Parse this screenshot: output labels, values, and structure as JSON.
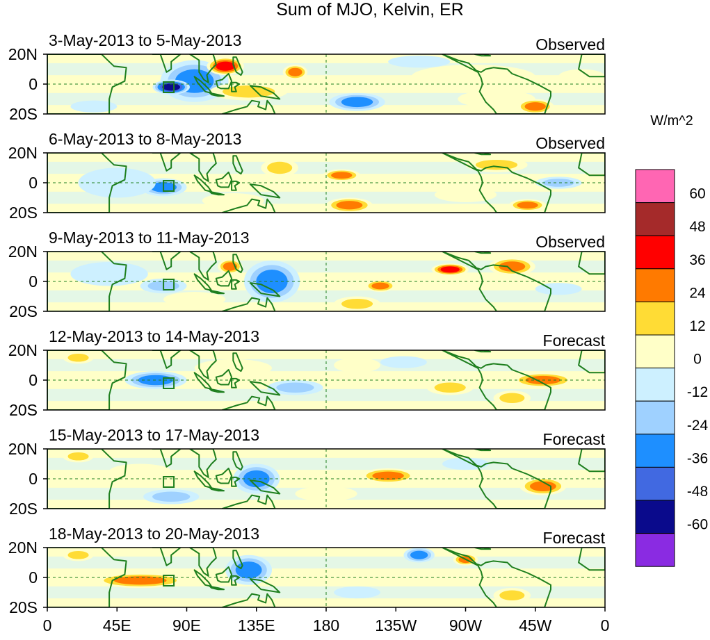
{
  "title": "Sum of MJO, Kelvin, ER",
  "colorbar": {
    "units": "W/m^2",
    "levels": [
      "60",
      "48",
      "36",
      "24",
      "12",
      "0",
      "-12",
      "-24",
      "-36",
      "-48",
      "-60"
    ],
    "colors": [
      "#ff66b3",
      "#a52a2a",
      "#ff0000",
      "#ff7a00",
      "#ffdc35",
      "#ffffc8",
      "#cdf0ff",
      "#9fd1ff",
      "#1e8fff",
      "#4169e1",
      "#0a0a8c",
      "#8a2be2"
    ]
  },
  "axes": {
    "x_ticks": [
      "0",
      "45E",
      "90E",
      "135E",
      "180",
      "135W",
      "90W",
      "45W",
      "0"
    ],
    "y_ticks": [
      "20N",
      "0",
      "20S"
    ]
  },
  "colors": {
    "coast": "#1e7f1e",
    "dash": "#1e7f1e",
    "frame": "#000000"
  },
  "panels": [
    {
      "date_range": "3-May-2013 to 5-May-2013",
      "kind": "Observed",
      "blobs": [
        {
          "lon": 95,
          "lat": 2,
          "rx": 22,
          "ry": 14,
          "v": -30
        },
        {
          "lon": 80,
          "lat": -2,
          "rx": 12,
          "ry": 5,
          "v": -50
        },
        {
          "lon": 115,
          "lat": 12,
          "rx": 12,
          "ry": 6,
          "v": 40
        },
        {
          "lon": 130,
          "lat": -5,
          "rx": 25,
          "ry": 6,
          "v": 15
        },
        {
          "lon": 160,
          "lat": 8,
          "rx": 8,
          "ry": 5,
          "v": 30
        },
        {
          "lon": 200,
          "lat": -12,
          "rx": 18,
          "ry": 6,
          "v": -30
        },
        {
          "lon": 275,
          "lat": 5,
          "rx": 40,
          "ry": 8,
          "v": 12
        },
        {
          "lon": 290,
          "lat": -10,
          "rx": 25,
          "ry": 6,
          "v": 12
        },
        {
          "lon": 315,
          "lat": -15,
          "rx": 12,
          "ry": 5,
          "v": 28
        },
        {
          "lon": 30,
          "lat": -15,
          "rx": 15,
          "ry": 4,
          "v": -12
        },
        {
          "lon": 240,
          "lat": 15,
          "rx": 20,
          "ry": 4,
          "v": -12
        },
        {
          "lon": 345,
          "lat": 5,
          "rx": 15,
          "ry": 5,
          "v": 12
        }
      ]
    },
    {
      "date_range": "6-May-2013 to 8-May-2013",
      "kind": "Observed",
      "blobs": [
        {
          "lon": 75,
          "lat": -3,
          "rx": 15,
          "ry": 6,
          "v": -30
        },
        {
          "lon": 150,
          "lat": 10,
          "rx": 12,
          "ry": 6,
          "v": 18
        },
        {
          "lon": 190,
          "lat": 5,
          "rx": 12,
          "ry": 4,
          "v": 30
        },
        {
          "lon": 195,
          "lat": -15,
          "rx": 15,
          "ry": 5,
          "v": 30
        },
        {
          "lon": 270,
          "lat": -8,
          "rx": 20,
          "ry": 5,
          "v": 12
        },
        {
          "lon": 310,
          "lat": -15,
          "rx": 12,
          "ry": 4,
          "v": 28
        },
        {
          "lon": 290,
          "lat": 12,
          "rx": 20,
          "ry": 5,
          "v": 15
        },
        {
          "lon": 330,
          "lat": 0,
          "rx": 15,
          "ry": 4,
          "v": -20
        },
        {
          "lon": 45,
          "lat": 0,
          "rx": 25,
          "ry": 10,
          "v": -12
        },
        {
          "lon": 120,
          "lat": -12,
          "rx": 20,
          "ry": 5,
          "v": 12
        }
      ]
    },
    {
      "date_range": "9-May-2013 to 11-May-2013",
      "kind": "Observed",
      "blobs": [
        {
          "lon": 145,
          "lat": 0,
          "rx": 18,
          "ry": 14,
          "v": -30
        },
        {
          "lon": 118,
          "lat": 10,
          "rx": 8,
          "ry": 5,
          "v": 30
        },
        {
          "lon": 200,
          "lat": -15,
          "rx": 15,
          "ry": 5,
          "v": 24
        },
        {
          "lon": 215,
          "lat": -3,
          "rx": 10,
          "ry": 4,
          "v": 30
        },
        {
          "lon": 260,
          "lat": 8,
          "rx": 12,
          "ry": 4,
          "v": 38
        },
        {
          "lon": 300,
          "lat": 10,
          "rx": 15,
          "ry": 6,
          "v": 28
        },
        {
          "lon": 75,
          "lat": -3,
          "rx": 15,
          "ry": 5,
          "v": -20
        },
        {
          "lon": 40,
          "lat": 5,
          "rx": 25,
          "ry": 8,
          "v": -12
        },
        {
          "lon": 95,
          "lat": -12,
          "rx": 20,
          "ry": 5,
          "v": 12
        },
        {
          "lon": 330,
          "lat": -5,
          "rx": 15,
          "ry": 4,
          "v": -12
        }
      ]
    },
    {
      "date_range": "12-May-2013 to 14-May-2013",
      "kind": "Forecast",
      "blobs": [
        {
          "lon": 70,
          "lat": 0,
          "rx": 20,
          "ry": 6,
          "v": -30
        },
        {
          "lon": 120,
          "lat": 8,
          "rx": 25,
          "ry": 6,
          "v": 12
        },
        {
          "lon": 160,
          "lat": -5,
          "rx": 18,
          "ry": 5,
          "v": -20
        },
        {
          "lon": 200,
          "lat": 10,
          "rx": 15,
          "ry": 5,
          "v": 12
        },
        {
          "lon": 260,
          "lat": -5,
          "rx": 15,
          "ry": 5,
          "v": 15
        },
        {
          "lon": 320,
          "lat": 0,
          "rx": 20,
          "ry": 5,
          "v": 28
        },
        {
          "lon": 300,
          "lat": -12,
          "rx": 12,
          "ry": 5,
          "v": 15
        },
        {
          "lon": 20,
          "lat": 15,
          "rx": 10,
          "ry": 4,
          "v": 15
        },
        {
          "lon": 230,
          "lat": 12,
          "rx": 15,
          "ry": 4,
          "v": -12
        }
      ]
    },
    {
      "date_range": "15-May-2013 to 17-May-2013",
      "kind": "Forecast",
      "blobs": [
        {
          "lon": 135,
          "lat": 0,
          "rx": 15,
          "ry": 10,
          "v": -30
        },
        {
          "lon": 80,
          "lat": -12,
          "rx": 18,
          "ry": 5,
          "v": -20
        },
        {
          "lon": 60,
          "lat": 5,
          "rx": 20,
          "ry": 5,
          "v": 12
        },
        {
          "lon": 220,
          "lat": 2,
          "rx": 18,
          "ry": 5,
          "v": 28
        },
        {
          "lon": 320,
          "lat": -5,
          "rx": 15,
          "ry": 6,
          "v": 28
        },
        {
          "lon": 20,
          "lat": 15,
          "rx": 10,
          "ry": 4,
          "v": 15
        },
        {
          "lon": 180,
          "lat": -10,
          "rx": 20,
          "ry": 5,
          "v": 12
        },
        {
          "lon": 270,
          "lat": 10,
          "rx": 15,
          "ry": 4,
          "v": -12
        }
      ]
    },
    {
      "date_range": "18-May-2013 to 20-May-2013",
      "kind": "Forecast",
      "blobs": [
        {
          "lon": 130,
          "lat": 5,
          "rx": 15,
          "ry": 10,
          "v": -35
        },
        {
          "lon": 60,
          "lat": -2,
          "rx": 30,
          "ry": 5,
          "v": 28
        },
        {
          "lon": 240,
          "lat": 15,
          "rx": 10,
          "ry": 5,
          "v": -30
        },
        {
          "lon": 270,
          "lat": 12,
          "rx": 8,
          "ry": 4,
          "v": 30
        },
        {
          "lon": 300,
          "lat": -12,
          "rx": 12,
          "ry": 5,
          "v": 20
        },
        {
          "lon": 175,
          "lat": 0,
          "rx": 20,
          "ry": 6,
          "v": 12
        },
        {
          "lon": 200,
          "lat": -10,
          "rx": 15,
          "ry": 4,
          "v": -12
        },
        {
          "lon": 20,
          "lat": 15,
          "rx": 10,
          "ry": 4,
          "v": 15
        }
      ]
    }
  ]
}
